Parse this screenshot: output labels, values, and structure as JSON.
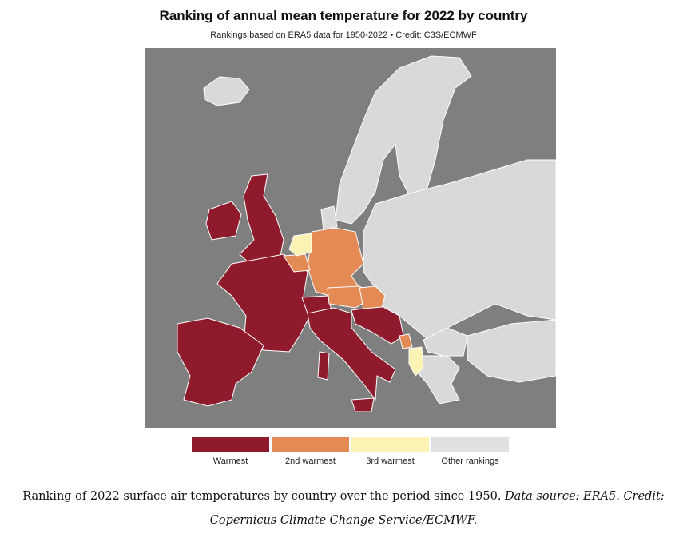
{
  "title": "Ranking of annual mean temperature for 2022 by country",
  "subtitle": "Rankings based on ERA5 data for 1950-2022 • Credit: C3S/ECMWF",
  "colors": {
    "sea": "#7f7f7f",
    "warmest": "#8e1a2b",
    "second": "#e48a55",
    "third": "#fbf2b4",
    "other": "#d9d9d9"
  },
  "legend": [
    {
      "label": "Warmest",
      "color": "#8e1a2b"
    },
    {
      "label": "2nd warmest",
      "color": "#e48a55"
    },
    {
      "label": "3rd warmest",
      "color": "#fbf2b4"
    },
    {
      "label": "Other rankings",
      "color": "#d9d9d9"
    }
  ],
  "caption": {
    "text": "Ranking of 2022 surface air temperatures by country over the period since 1950.",
    "source": "Data source: ERA5. Credit:",
    "credit": "Copernicus Climate Change Service/ECMWF."
  }
}
